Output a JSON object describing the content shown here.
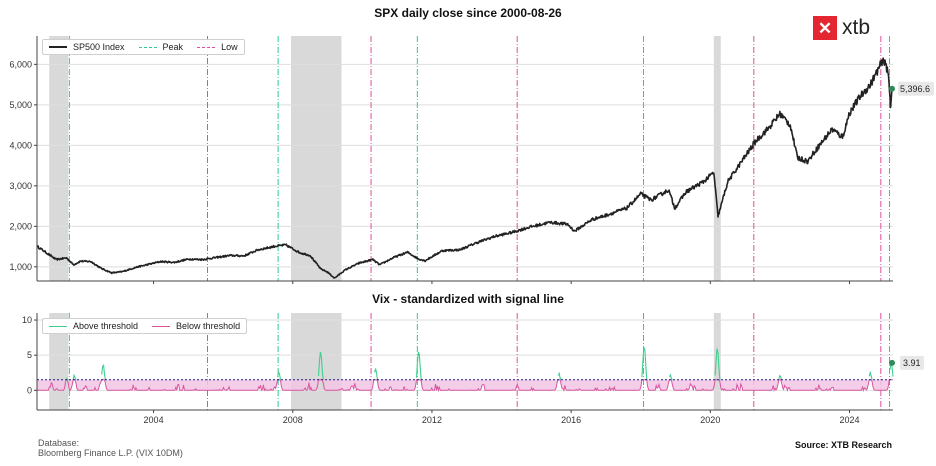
{
  "colors": {
    "spx_line": "#222222",
    "peak": "#2ecc8f",
    "low": "#e0509a",
    "recession": "#d9d9d9",
    "above": "#3ecf8e",
    "below": "#d9559f",
    "below_fill": "#f2c6e4",
    "threshold": "#1a1a7a",
    "logo_red": "#e3262f"
  },
  "logo": {
    "mark": "✕",
    "text": "xtb"
  },
  "footer": {
    "database_label": "Database:",
    "database_value": "Bloomberg Finance L.P. (VIX 10DM)",
    "source": "Source: XTB Research"
  },
  "chart_data": [
    {
      "type": "line",
      "title": "SPX daily close since 2000-08-26",
      "xlabel": "",
      "ylabel": "",
      "xlim": [
        2000.65,
        2025.25
      ],
      "ylim": [
        650,
        6700
      ],
      "x_ticks": [
        2004,
        2008,
        2012,
        2016,
        2020,
        2024
      ],
      "x_tick_labels": [
        "2004",
        "2008",
        "2012",
        "2016",
        "2020",
        "2024"
      ],
      "y_ticks": [
        1000,
        2000,
        3000,
        4000,
        5000,
        6000
      ],
      "y_tick_labels": [
        "1,000",
        "2,000",
        "3,000",
        "4,000",
        "5,000",
        "6,000"
      ],
      "grid": true,
      "legend": {
        "placement": "top-left",
        "entries": [
          "SP500 Index",
          "Peak",
          "Low"
        ]
      },
      "last_value_label": "5,396.6",
      "last_value": 5396.6,
      "series": [
        {
          "name": "SP500 Index",
          "x": [
            2000.65,
            2000.9,
            2001.2,
            2001.5,
            2001.7,
            2001.9,
            2002.2,
            2002.5,
            2002.8,
            2003.1,
            2003.5,
            2003.8,
            2004.2,
            2004.6,
            2005.0,
            2005.4,
            2005.8,
            2006.2,
            2006.6,
            2007.0,
            2007.5,
            2007.8,
            2008.2,
            2008.5,
            2008.8,
            2009.0,
            2009.2,
            2009.5,
            2009.9,
            2010.3,
            2010.5,
            2010.9,
            2011.3,
            2011.6,
            2011.8,
            2012.3,
            2012.8,
            2013.3,
            2013.8,
            2014.3,
            2014.8,
            2015.4,
            2015.9,
            2016.1,
            2016.6,
            2017.0,
            2017.6,
            2018.0,
            2018.3,
            2018.8,
            2018.98,
            2019.3,
            2019.8,
            2020.1,
            2020.22,
            2020.5,
            2020.9,
            2021.3,
            2021.7,
            2022.0,
            2022.3,
            2022.5,
            2022.8,
            2023.0,
            2023.5,
            2023.8,
            2024.0,
            2024.3,
            2024.6,
            2024.9,
            2025.02,
            2025.12,
            2025.18,
            2025.22
          ],
          "y": [
            1510,
            1360,
            1180,
            1220,
            1050,
            1140,
            1130,
            960,
            850,
            880,
            990,
            1050,
            1130,
            1110,
            1190,
            1180,
            1230,
            1280,
            1270,
            1420,
            1510,
            1540,
            1350,
            1280,
            950,
            870,
            720,
            920,
            1090,
            1180,
            1050,
            1230,
            1360,
            1200,
            1150,
            1400,
            1420,
            1600,
            1750,
            1850,
            1980,
            2100,
            2050,
            1880,
            2170,
            2270,
            2450,
            2800,
            2650,
            2900,
            2450,
            2850,
            3100,
            3330,
            2240,
            3100,
            3600,
            4100,
            4450,
            4780,
            4500,
            3700,
            3600,
            3850,
            4400,
            4200,
            4800,
            5200,
            5500,
            6000,
            6100,
            5700,
            5000,
            5400
          ]
        }
      ],
      "peaks": [
        2001.58,
        2007.58,
        2011.58,
        2018.08,
        2025.15
      ],
      "lows": [
        2005.55,
        2010.25,
        2014.45,
        2021.25,
        2024.9
      ],
      "shaded_periods": [
        [
          2001.0,
          2001.55
        ],
        [
          2007.95,
          2009.4
        ],
        [
          2020.1,
          2020.3
        ]
      ]
    },
    {
      "type": "area",
      "title": "Vix - standardized with signal line",
      "xlabel": "",
      "ylabel": "",
      "xlim": [
        2000.65,
        2025.25
      ],
      "ylim": [
        -2.8,
        11
      ],
      "x_ticks": [
        2004,
        2008,
        2012,
        2016,
        2020,
        2024
      ],
      "x_tick_labels": [
        "2004",
        "2008",
        "2012",
        "2016",
        "2020",
        "2024"
      ],
      "y_ticks": [
        0,
        5,
        10
      ],
      "y_tick_labels": [
        "0",
        "5",
        "10"
      ],
      "grid": true,
      "threshold": 1.5,
      "legend": {
        "placement": "top-left",
        "entries": [
          "Above threshold",
          "Below threshold"
        ]
      },
      "last_value_label": "3.91",
      "last_value": 3.91,
      "spikes": [
        {
          "x": 2001.5,
          "y": 1.8
        },
        {
          "x": 2001.72,
          "y": 2.2
        },
        {
          "x": 2002.55,
          "y": 3.6
        },
        {
          "x": 2007.6,
          "y": 2.6
        },
        {
          "x": 2008.8,
          "y": 5.5
        },
        {
          "x": 2010.38,
          "y": 3.1
        },
        {
          "x": 2011.62,
          "y": 5.6
        },
        {
          "x": 2015.65,
          "y": 2.4
        },
        {
          "x": 2018.1,
          "y": 6.3
        },
        {
          "x": 2018.85,
          "y": 2.2
        },
        {
          "x": 2020.2,
          "y": 6.0
        },
        {
          "x": 2022.0,
          "y": 2.1
        },
        {
          "x": 2024.6,
          "y": 2.4
        },
        {
          "x": 2025.2,
          "y": 3.91
        }
      ],
      "peaks": [
        2001.58,
        2007.58,
        2011.58,
        2018.08,
        2025.15
      ],
      "lows": [
        2005.55,
        2010.25,
        2014.45,
        2021.25,
        2024.9
      ],
      "shaded_periods": [
        [
          2001.0,
          2001.55
        ],
        [
          2007.95,
          2009.4
        ],
        [
          2020.1,
          2020.3
        ]
      ]
    }
  ]
}
